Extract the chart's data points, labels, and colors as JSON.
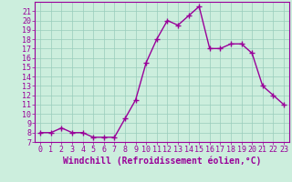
{
  "x": [
    0,
    1,
    2,
    3,
    4,
    5,
    6,
    7,
    8,
    9,
    10,
    11,
    12,
    13,
    14,
    15,
    16,
    17,
    18,
    19,
    20,
    21,
    22,
    23
  ],
  "y": [
    8,
    8,
    8.5,
    8,
    8,
    7.5,
    7.5,
    7.5,
    9.5,
    11.5,
    15.5,
    18,
    20,
    19.5,
    20.5,
    21.5,
    17,
    17,
    17.5,
    17.5,
    16.5,
    13,
    12,
    11
  ],
  "line_color": "#990099",
  "marker": "+",
  "marker_size": 4.0,
  "line_width": 1.0,
  "bg_color": "#cceedd",
  "grid_color": "#99ccbb",
  "xlabel": "Windchill (Refroidissement éolien,°C)",
  "xlabel_fontsize": 7,
  "tick_fontsize": 6,
  "xlim": [
    -0.5,
    23.5
  ],
  "ylim": [
    7,
    22
  ],
  "yticks": [
    7,
    8,
    9,
    10,
    11,
    12,
    13,
    14,
    15,
    16,
    17,
    18,
    19,
    20,
    21
  ],
  "xticks": [
    0,
    1,
    2,
    3,
    4,
    5,
    6,
    7,
    8,
    9,
    10,
    11,
    12,
    13,
    14,
    15,
    16,
    17,
    18,
    19,
    20,
    21,
    22,
    23
  ]
}
